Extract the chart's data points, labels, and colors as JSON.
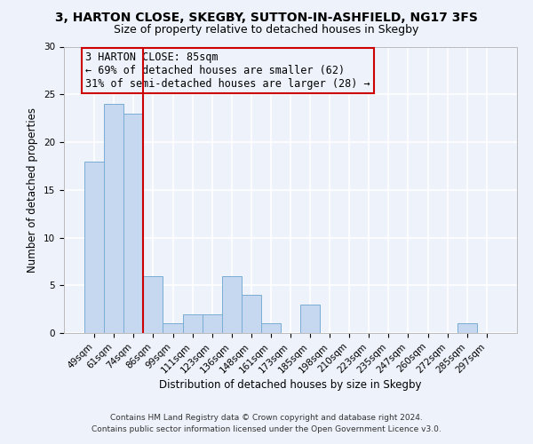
{
  "title": "3, HARTON CLOSE, SKEGBY, SUTTON-IN-ASHFIELD, NG17 3FS",
  "subtitle": "Size of property relative to detached houses in Skegby",
  "xlabel": "Distribution of detached houses by size in Skegby",
  "ylabel": "Number of detached properties",
  "bar_labels": [
    "49sqm",
    "61sqm",
    "74sqm",
    "86sqm",
    "99sqm",
    "111sqm",
    "123sqm",
    "136sqm",
    "148sqm",
    "161sqm",
    "173sqm",
    "185sqm",
    "198sqm",
    "210sqm",
    "223sqm",
    "235sqm",
    "247sqm",
    "260sqm",
    "272sqm",
    "285sqm",
    "297sqm"
  ],
  "bar_values": [
    18,
    24,
    23,
    6,
    1,
    2,
    2,
    6,
    4,
    1,
    0,
    3,
    0,
    0,
    0,
    0,
    0,
    0,
    0,
    1,
    0
  ],
  "bar_color": "#c5d8f0",
  "bar_edge_color": "#7aadd4",
  "vline_color": "#cc0000",
  "vline_x_index": 3,
  "annotation_text": "3 HARTON CLOSE: 85sqm\n← 69% of detached houses are smaller (62)\n31% of semi-detached houses are larger (28) →",
  "annotation_box_edge": "#cc0000",
  "ylim": [
    0,
    30
  ],
  "yticks": [
    0,
    5,
    10,
    15,
    20,
    25,
    30
  ],
  "footnote1": "Contains HM Land Registry data © Crown copyright and database right 2024.",
  "footnote2": "Contains public sector information licensed under the Open Government Licence v3.0.",
  "bg_color": "#eef2fb",
  "grid_color": "#ffffff",
  "title_fontsize": 10,
  "subtitle_fontsize": 9,
  "axis_label_fontsize": 8.5,
  "tick_fontsize": 7.5,
  "annotation_fontsize": 8.5,
  "footnote_fontsize": 6.5
}
